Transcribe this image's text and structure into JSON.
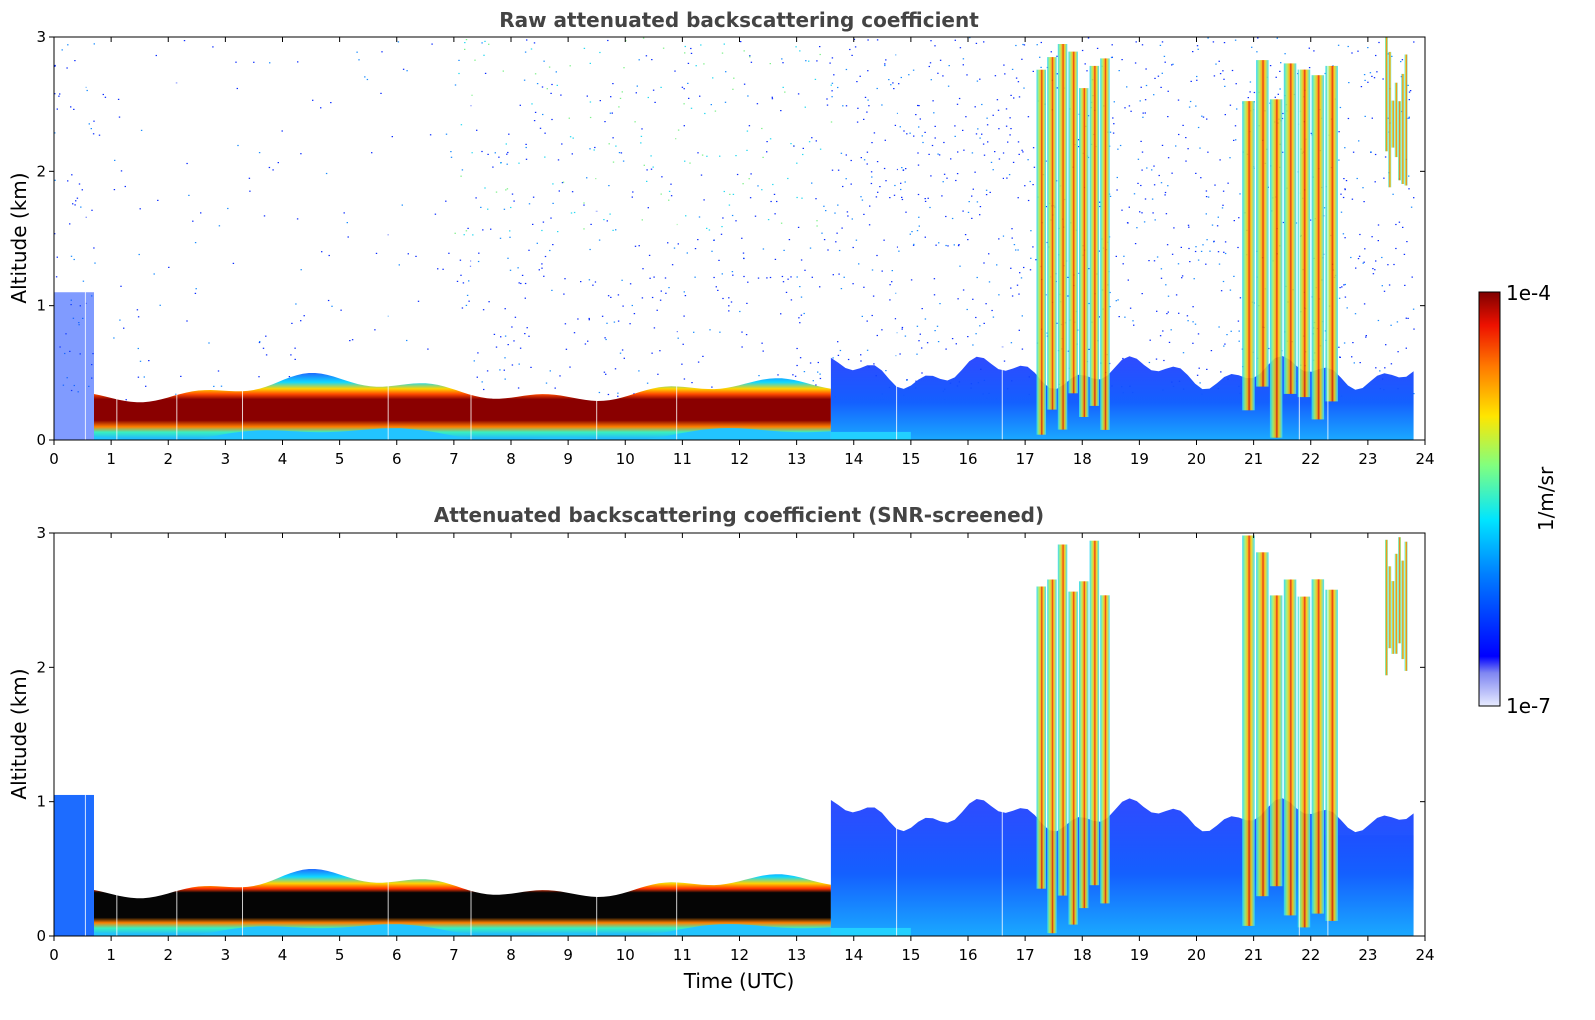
{
  "chart_data": [
    {
      "type": "heatmap",
      "title": "Raw attenuated backscattering coefficient",
      "xlabel": "",
      "ylabel": "Altitude (km)",
      "xlim": [
        0,
        24
      ],
      "ylim": [
        0,
        3
      ],
      "x_ticks": [
        "0",
        "1",
        "2",
        "3",
        "4",
        "5",
        "6",
        "7",
        "8",
        "9",
        "10",
        "11",
        "12",
        "13",
        "14",
        "15",
        "16",
        "17",
        "18",
        "19",
        "20",
        "21",
        "22",
        "23",
        "24"
      ],
      "y_ticks": [
        "0",
        "1",
        "2",
        "3"
      ],
      "value_scale": "log",
      "layers": [
        {
          "feature": "boundary layer (aerosol top)",
          "t_start": 0.7,
          "t_end": 13.6,
          "alt_bottom_km": 0.1,
          "alt_top_km": 0.3
        },
        {
          "feature": "near-surface aerosol",
          "t_start": 13.6,
          "t_end": 23.8,
          "alt_bottom_km": 0.0,
          "alt_top_km": 0.5
        },
        {
          "feature": "cloud column",
          "t_start": 17.2,
          "t_end": 18.5,
          "alt_bottom_km": 0.0,
          "alt_top_km": 3.0
        },
        {
          "feature": "cloud column",
          "t_start": 20.8,
          "t_end": 22.5,
          "alt_bottom_km": 0.0,
          "alt_top_km": 3.0
        },
        {
          "feature": "cloud column",
          "t_start": 23.3,
          "t_end": 23.7,
          "alt_bottom_km": 1.8,
          "alt_top_km": 3.0
        }
      ]
    },
    {
      "type": "heatmap",
      "title": "Attenuated backscattering coefficient (SNR-screened)",
      "xlabel": "Time (UTC)",
      "ylabel": "Altitude (km)",
      "xlim": [
        0,
        24
      ],
      "ylim": [
        0,
        3
      ],
      "x_ticks": [
        "0",
        "1",
        "2",
        "3",
        "4",
        "5",
        "6",
        "7",
        "8",
        "9",
        "10",
        "11",
        "12",
        "13",
        "14",
        "15",
        "16",
        "17",
        "18",
        "19",
        "20",
        "21",
        "22",
        "23",
        "24"
      ],
      "y_ticks": [
        "0",
        "1",
        "2",
        "3"
      ],
      "value_scale": "log",
      "layers": [
        {
          "feature": "boundary layer (aerosol top)",
          "t_start": 0.7,
          "t_end": 13.6,
          "alt_bottom_km": 0.1,
          "alt_top_km": 0.3
        },
        {
          "feature": "near-surface aerosol",
          "t_start": 13.6,
          "t_end": 23.8,
          "alt_bottom_km": 0.0,
          "alt_top_km": 0.9
        },
        {
          "feature": "cloud column",
          "t_start": 17.2,
          "t_end": 18.5,
          "alt_bottom_km": 0.0,
          "alt_top_km": 3.0
        },
        {
          "feature": "cloud column",
          "t_start": 20.8,
          "t_end": 22.5,
          "alt_bottom_km": 0.0,
          "alt_top_km": 3.0
        },
        {
          "feature": "cloud column",
          "t_start": 23.3,
          "t_end": 23.7,
          "alt_bottom_km": 1.8,
          "alt_top_km": 3.0
        }
      ]
    }
  ],
  "colorbar": {
    "max_label": "1e-4",
    "min_label": "1e-7",
    "unit_label": "1/m/sr",
    "colormap": "jet",
    "scale": "log"
  }
}
